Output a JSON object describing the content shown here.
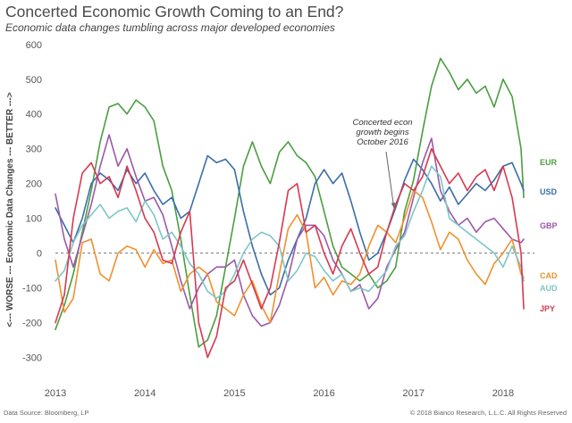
{
  "header": {
    "title": "Concerted Economic Growth Coming to an End?",
    "subtitle": "Economic data changes tumbling across major developed economies"
  },
  "footer": {
    "source": "Data Source: Bloomberg, LP",
    "copyright": "© 2018 Bianco Research, L.L.C. All Rights Reserved"
  },
  "chart_data": {
    "type": "line",
    "title": "Concerted Economic Growth Coming to an End?",
    "subtitle": "Economic data changes tumbling across major developed economies",
    "ylabel": "<--- WORSE --- Economic Data Changes --- BETTER --->",
    "xlabel": "",
    "xlim": [
      2013.0,
      2018.35
    ],
    "ylim": [
      -350,
      620
    ],
    "xticks": [
      "2013",
      "2014",
      "2015",
      "2016",
      "2017",
      "2018"
    ],
    "yticks": [
      -300,
      -200,
      -100,
      0,
      100,
      200,
      300,
      400,
      500,
      600
    ],
    "zero_line": "dashed",
    "grid": false,
    "annotation": {
      "lines": [
        "Concerted econ",
        "growth begins",
        "October 2016"
      ],
      "points_to": {
        "x": 2016.78,
        "y": 120
      }
    },
    "series": [
      {
        "name": "EUR",
        "color": "#4a9e3f",
        "x": [
          2013.0,
          2013.1,
          2013.2,
          2013.3,
          2013.4,
          2013.5,
          2013.6,
          2013.7,
          2013.8,
          2013.9,
          2014.0,
          2014.1,
          2014.2,
          2014.3,
          2014.4,
          2014.5,
          2014.6,
          2014.7,
          2014.8,
          2014.9,
          2015.0,
          2015.1,
          2015.2,
          2015.3,
          2015.4,
          2015.5,
          2015.6,
          2015.7,
          2015.8,
          2015.9,
          2016.0,
          2016.1,
          2016.2,
          2016.3,
          2016.4,
          2016.5,
          2016.6,
          2016.7,
          2016.8,
          2016.9,
          2017.0,
          2017.1,
          2017.2,
          2017.3,
          2017.4,
          2017.5,
          2017.6,
          2017.7,
          2017.8,
          2017.9,
          2018.0,
          2018.1,
          2018.2,
          2018.23
        ],
        "y": [
          -220,
          -150,
          -60,
          60,
          180,
          320,
          420,
          430,
          400,
          440,
          420,
          380,
          250,
          180,
          40,
          -120,
          -270,
          -250,
          -180,
          -40,
          100,
          250,
          320,
          250,
          200,
          290,
          320,
          280,
          260,
          220,
          120,
          20,
          -40,
          -60,
          -80,
          -60,
          -100,
          -80,
          -40,
          120,
          210,
          350,
          480,
          560,
          520,
          470,
          500,
          460,
          480,
          420,
          500,
          450,
          300,
          160
        ]
      },
      {
        "name": "USD",
        "color": "#3a6ea8",
        "x": [
          2013.0,
          2013.1,
          2013.2,
          2013.3,
          2013.4,
          2013.5,
          2013.6,
          2013.7,
          2013.8,
          2013.9,
          2014.0,
          2014.1,
          2014.2,
          2014.3,
          2014.4,
          2014.5,
          2014.6,
          2014.7,
          2014.8,
          2014.9,
          2015.0,
          2015.1,
          2015.2,
          2015.3,
          2015.4,
          2015.5,
          2015.6,
          2015.7,
          2015.8,
          2015.9,
          2016.0,
          2016.1,
          2016.2,
          2016.3,
          2016.4,
          2016.5,
          2016.6,
          2016.7,
          2016.8,
          2016.9,
          2017.0,
          2017.1,
          2017.2,
          2017.3,
          2017.4,
          2017.5,
          2017.6,
          2017.7,
          2017.8,
          2017.9,
          2018.0,
          2018.1,
          2018.2,
          2018.23
        ],
        "y": [
          130,
          80,
          30,
          100,
          200,
          230,
          210,
          180,
          240,
          200,
          230,
          180,
          140,
          160,
          100,
          120,
          200,
          280,
          260,
          270,
          240,
          120,
          20,
          -60,
          -120,
          -100,
          -20,
          40,
          100,
          200,
          240,
          200,
          230,
          150,
          60,
          -20,
          0,
          60,
          130,
          210,
          270,
          240,
          200,
          150,
          190,
          140,
          170,
          200,
          180,
          210,
          250,
          260,
          200,
          180
        ]
      },
      {
        "name": "GBP",
        "color": "#9b59a8",
        "x": [
          2013.0,
          2013.1,
          2013.2,
          2013.3,
          2013.4,
          2013.5,
          2013.6,
          2013.7,
          2013.8,
          2013.9,
          2014.0,
          2014.1,
          2014.2,
          2014.3,
          2014.4,
          2014.5,
          2014.6,
          2014.7,
          2014.8,
          2014.9,
          2015.0,
          2015.1,
          2015.2,
          2015.3,
          2015.4,
          2015.5,
          2015.6,
          2015.7,
          2015.8,
          2015.9,
          2016.0,
          2016.1,
          2016.2,
          2016.3,
          2016.4,
          2016.5,
          2016.6,
          2016.7,
          2016.8,
          2016.9,
          2017.0,
          2017.1,
          2017.2,
          2017.3,
          2017.4,
          2017.5,
          2017.6,
          2017.7,
          2017.8,
          2017.9,
          2018.0,
          2018.1,
          2018.2,
          2018.23
        ],
        "y": [
          170,
          40,
          -40,
          50,
          140,
          250,
          340,
          250,
          300,
          220,
          150,
          160,
          110,
          20,
          -80,
          -160,
          -100,
          -60,
          -40,
          -40,
          -20,
          -120,
          -180,
          -210,
          -200,
          -150,
          -70,
          40,
          80,
          80,
          50,
          -20,
          -60,
          -110,
          -90,
          -160,
          -130,
          -40,
          10,
          60,
          160,
          260,
          330,
          180,
          120,
          80,
          100,
          60,
          90,
          100,
          70,
          40,
          30,
          40
        ]
      },
      {
        "name": "CAD",
        "color": "#f0902f",
        "x": [
          2013.0,
          2013.1,
          2013.2,
          2013.3,
          2013.4,
          2013.5,
          2013.6,
          2013.7,
          2013.8,
          2013.9,
          2014.0,
          2014.1,
          2014.2,
          2014.3,
          2014.4,
          2014.5,
          2014.6,
          2014.7,
          2014.8,
          2014.9,
          2015.0,
          2015.1,
          2015.2,
          2015.3,
          2015.4,
          2015.5,
          2015.6,
          2015.7,
          2015.8,
          2015.9,
          2016.0,
          2016.1,
          2016.2,
          2016.3,
          2016.4,
          2016.5,
          2016.6,
          2016.7,
          2016.8,
          2016.9,
          2017.0,
          2017.1,
          2017.2,
          2017.3,
          2017.4,
          2017.5,
          2017.6,
          2017.7,
          2017.8,
          2017.9,
          2018.0,
          2018.1,
          2018.2,
          2018.23
        ],
        "y": [
          -20,
          -170,
          -130,
          30,
          40,
          -60,
          -80,
          0,
          20,
          10,
          -40,
          10,
          -30,
          -20,
          -110,
          -60,
          -40,
          -60,
          -140,
          -160,
          -180,
          -120,
          -80,
          -150,
          -200,
          -60,
          70,
          110,
          60,
          -100,
          -70,
          -120,
          -80,
          -90,
          -60,
          20,
          80,
          60,
          30,
          100,
          180,
          160,
          90,
          10,
          60,
          40,
          -20,
          -60,
          -90,
          -30,
          0,
          40,
          -60,
          -70
        ]
      },
      {
        "name": "AUD",
        "color": "#7fc6c6",
        "x": [
          2013.0,
          2013.1,
          2013.2,
          2013.3,
          2013.4,
          2013.5,
          2013.6,
          2013.7,
          2013.8,
          2013.9,
          2014.0,
          2014.1,
          2014.2,
          2014.3,
          2014.4,
          2014.5,
          2014.6,
          2014.7,
          2014.8,
          2014.9,
          2015.0,
          2015.1,
          2015.2,
          2015.3,
          2015.4,
          2015.5,
          2015.6,
          2015.7,
          2015.8,
          2015.9,
          2016.0,
          2016.1,
          2016.2,
          2016.3,
          2016.4,
          2016.5,
          2016.6,
          2016.7,
          2016.8,
          2016.9,
          2017.0,
          2017.1,
          2017.2,
          2017.3,
          2017.4,
          2017.5,
          2017.6,
          2017.7,
          2017.8,
          2017.9,
          2018.0,
          2018.1,
          2018.2,
          2018.23
        ],
        "y": [
          -80,
          -50,
          30,
          80,
          110,
          140,
          100,
          120,
          130,
          90,
          150,
          110,
          40,
          60,
          20,
          -30,
          -60,
          -110,
          -130,
          -110,
          -60,
          0,
          40,
          60,
          50,
          20,
          -80,
          -50,
          0,
          -10,
          -50,
          -80,
          -60,
          -110,
          -100,
          -110,
          -80,
          -50,
          20,
          50,
          120,
          180,
          250,
          220,
          100,
          80,
          60,
          40,
          20,
          0,
          -40,
          20,
          -40,
          -80
        ]
      },
      {
        "name": "JPY",
        "color": "#d6394f",
        "x": [
          2013.0,
          2013.1,
          2013.2,
          2013.3,
          2013.4,
          2013.5,
          2013.6,
          2013.7,
          2013.8,
          2013.9,
          2014.0,
          2014.1,
          2014.2,
          2014.3,
          2014.4,
          2014.5,
          2014.6,
          2014.7,
          2014.8,
          2014.9,
          2015.0,
          2015.1,
          2015.2,
          2015.3,
          2015.4,
          2015.5,
          2015.6,
          2015.7,
          2015.8,
          2015.9,
          2016.0,
          2016.1,
          2016.2,
          2016.3,
          2016.4,
          2016.5,
          2016.6,
          2016.7,
          2016.8,
          2016.9,
          2017.0,
          2017.1,
          2017.2,
          2017.3,
          2017.4,
          2017.5,
          2017.6,
          2017.7,
          2017.8,
          2017.9,
          2018.0,
          2018.1,
          2018.2,
          2018.23
        ],
        "y": [
          -200,
          -120,
          100,
          230,
          260,
          200,
          220,
          160,
          250,
          180,
          100,
          60,
          -20,
          -30,
          60,
          120,
          -200,
          -300,
          -240,
          -100,
          -80,
          -20,
          -90,
          -160,
          -100,
          30,
          180,
          200,
          60,
          80,
          0,
          -60,
          20,
          70,
          0,
          -60,
          -40,
          60,
          140,
          200,
          180,
          220,
          300,
          250,
          200,
          230,
          180,
          220,
          240,
          180,
          250,
          160,
          0,
          -160
        ]
      }
    ]
  }
}
